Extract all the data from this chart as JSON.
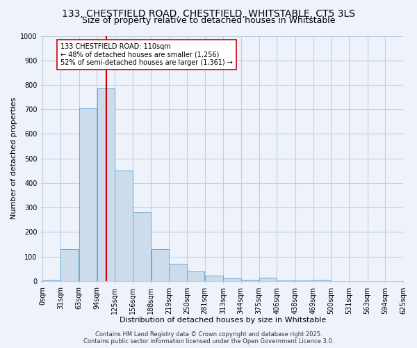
{
  "title_line1": "133, CHESTFIELD ROAD, CHESTFIELD, WHITSTABLE, CT5 3LS",
  "title_line2": "Size of property relative to detached houses in Whitstable",
  "xlabel": "Distribution of detached houses by size in Whitstable",
  "ylabel": "Number of detached properties",
  "bar_color": "#ccdcec",
  "bar_edge_color": "#6aaad4",
  "grid_color": "#c0cedf",
  "background_color": "#eef2fb",
  "bin_edges": [
    0,
    31,
    63,
    94,
    125,
    156,
    188,
    219,
    250,
    281,
    313,
    344,
    375,
    406,
    438,
    469,
    500,
    531,
    563,
    594,
    625
  ],
  "bin_labels": [
    "0sqm",
    "31sqm",
    "63sqm",
    "94sqm",
    "125sqm",
    "156sqm",
    "188sqm",
    "219sqm",
    "250sqm",
    "281sqm",
    "313sqm",
    "344sqm",
    "375sqm",
    "406sqm",
    "438sqm",
    "469sqm",
    "500sqm",
    "531sqm",
    "563sqm",
    "594sqm",
    "625sqm"
  ],
  "bar_heights": [
    5,
    130,
    705,
    785,
    450,
    280,
    130,
    70,
    38,
    22,
    10,
    5,
    13,
    3,
    3,
    5,
    0,
    0,
    0,
    0
  ],
  "vline_x": 110,
  "vline_color": "#cc0000",
  "annotation_line1": "133 CHESTFIELD ROAD: 110sqm",
  "annotation_line2": "← 48% of detached houses are smaller (1,256)",
  "annotation_line3": "52% of semi-detached houses are larger (1,361) →",
  "annotation_box_color": "#ffffff",
  "annotation_box_edge": "#cc0000",
  "ylim": [
    0,
    1000
  ],
  "yticks": [
    0,
    100,
    200,
    300,
    400,
    500,
    600,
    700,
    800,
    900,
    1000
  ],
  "footer_line1": "Contains HM Land Registry data © Crown copyright and database right 2025.",
  "footer_line2": "Contains public sector information licensed under the Open Government Licence 3.0.",
  "title_fontsize": 10,
  "subtitle_fontsize": 9,
  "axis_label_fontsize": 8,
  "tick_fontsize": 7,
  "annotation_fontsize": 7,
  "footer_fontsize": 6
}
